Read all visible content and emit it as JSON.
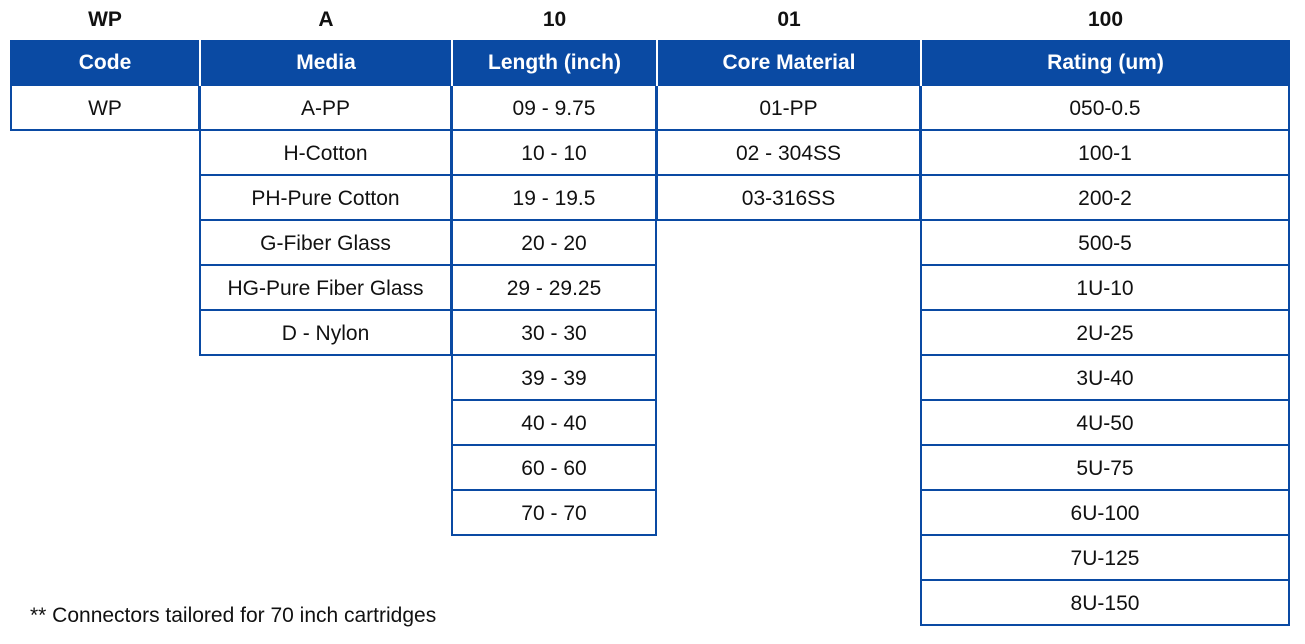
{
  "codes": {
    "code": "WP",
    "media": "A",
    "length": "10",
    "core": "01",
    "rating": "100"
  },
  "headers": {
    "code": "Code",
    "media": "Media",
    "length": "Length (inch)",
    "core": "Core Material",
    "rating": "Rating  (um)"
  },
  "columns": {
    "code": [
      "WP"
    ],
    "media": [
      "A-PP",
      "H-Cotton",
      "PH-Pure Cotton",
      "G-Fiber Glass",
      "HG-Pure Fiber Glass",
      "D - Nylon"
    ],
    "length": [
      "09 - 9.75",
      "10 - 10",
      "19 - 19.5",
      "20 - 20",
      "29 - 29.25",
      "30 - 30",
      "39 - 39",
      "40 - 40",
      "60 - 60",
      "70 - 70"
    ],
    "core": [
      "01-PP",
      "02 - 304SS",
      "03-316SS"
    ],
    "rating": [
      "050-0.5",
      "100-1",
      "200-2",
      "500-5",
      "1U-10",
      "2U-25",
      "3U-40",
      "4U-50",
      "5U-75",
      "6U-100",
      "7U-125",
      "8U-150"
    ]
  },
  "note": "** Connectors tailored for 70 inch cartridges",
  "colors": {
    "header_bg": "#0a4aa3",
    "header_text": "#ffffff",
    "border": "#0a4aa3"
  }
}
